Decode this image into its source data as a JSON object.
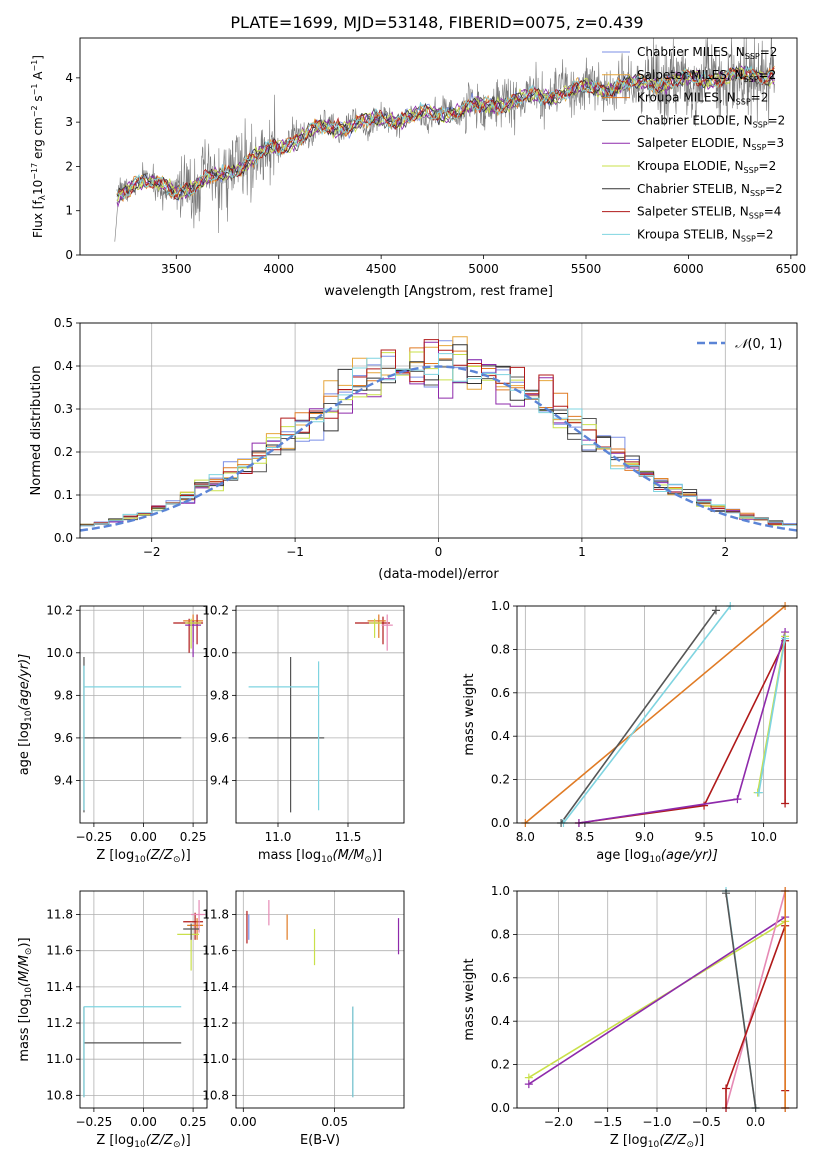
{
  "title": "PLATE=1699, MJD=53148, FIBERID=0075, z=0.439",
  "chart_data": [
    {
      "id": "spectrum",
      "type": "line",
      "xlabel": "wavelength [Angstrom, rest frame]",
      "ylabel": "Flux [f$_\\lambda$ 10$^{-17}$ erg cm$^{-2}$ s$^{-1}$ A$^{-1}$]",
      "ylabel_main": "Flux [f",
      "ylabel_tail": "10",
      "xlim": [
        3030,
        6530
      ],
      "ylim": [
        0,
        4.9
      ],
      "xticks": [
        3500,
        4000,
        4500,
        5000,
        5500,
        6000,
        6500
      ],
      "yticks": [
        0,
        1,
        2,
        3,
        4
      ],
      "data_range": [
        3200,
        6420
      ],
      "grid": false,
      "legend_position": "top-right",
      "continuum_knots": [
        [
          3200,
          1.25
        ],
        [
          3300,
          1.7
        ],
        [
          3500,
          1.45
        ],
        [
          3700,
          1.75
        ],
        [
          3950,
          2.35
        ],
        [
          4200,
          2.85
        ],
        [
          4500,
          3.05
        ],
        [
          4800,
          3.2
        ],
        [
          5100,
          3.45
        ],
        [
          5500,
          3.75
        ],
        [
          6000,
          3.95
        ],
        [
          6420,
          4.1
        ]
      ],
      "series": [
        {
          "name": "Chabrier MILES, N",
          "sub": "SSP",
          "suffix": "=2",
          "color": "#7b8fe6"
        },
        {
          "name": "Salpeter MILES, N",
          "sub": "SSP",
          "suffix": "=2",
          "color": "#e6a63d"
        },
        {
          "name": "Kroupa MILES, N",
          "sub": "SSP",
          "suffix": "=2",
          "color": "#e07b25"
        },
        {
          "name": "Chabrier ELODIE, N",
          "sub": "SSP",
          "suffix": "=2",
          "color": "#555555"
        },
        {
          "name": "Salpeter ELODIE, N",
          "sub": "SSP",
          "suffix": "=3",
          "color": "#8e2aab"
        },
        {
          "name": "Kroupa ELODIE, N",
          "sub": "SSP",
          "suffix": "=2",
          "color": "#c9e04a"
        },
        {
          "name": "Chabrier STELIB, N",
          "sub": "SSP",
          "suffix": "=2",
          "color": "#333333"
        },
        {
          "name": "Salpeter STELIB, N",
          "sub": "SSP",
          "suffix": "=4",
          "color": "#b01a1a"
        },
        {
          "name": "Kroupa STELIB, N",
          "sub": "SSP",
          "suffix": "=2",
          "color": "#7fd4e0"
        }
      ]
    },
    {
      "id": "residuals",
      "type": "line",
      "xlabel": "(data-model)/error",
      "ylabel": "Normed distribution",
      "xlim": [
        -2.5,
        2.5
      ],
      "ylim": [
        0,
        0.5
      ],
      "xticks": [
        -2,
        -1,
        0,
        1,
        2
      ],
      "xticklabels": [
        "−2",
        "−1",
        "0",
        "1",
        "2"
      ],
      "yticks": [
        0.0,
        0.1,
        0.2,
        0.3,
        0.4,
        0.5
      ],
      "yticklabels": [
        "0.0",
        "0.1",
        "0.2",
        "0.3",
        "0.4",
        "0.5"
      ],
      "grid": true,
      "legend_position": "top-right",
      "legend_label": "(0, 1)",
      "legend_prefix": "𝒩",
      "gaussian_color": "#5b84d6",
      "bin_width": 0.1
    },
    {
      "id": "age_vs_Z",
      "type": "scatter",
      "xlabel_prefix": "Z [log",
      "xlabel_sub": "10",
      "xlabel_mid": "(Z/Z",
      "xlabel_end": ")]",
      "ylabel_prefix": "age  [log",
      "ylabel_sub": "10",
      "ylabel_end": "(age/yr)]",
      "xlim": [
        -0.32,
        0.32
      ],
      "ylim": [
        9.2,
        10.22
      ],
      "xticks": [
        -0.25,
        0.0,
        0.25
      ],
      "xticklabels": [
        "−0.25",
        "0.00",
        "0.25"
      ],
      "yticks": [
        9.4,
        9.6,
        9.8,
        10.0,
        10.2
      ],
      "yticklabels": [
        "9.4",
        "9.6",
        "9.8",
        "10.0",
        "10.2"
      ],
      "grid": true,
      "points": [
        {
          "x": -0.3,
          "y": 9.6,
          "xerr": [
            0.0,
            0.49
          ],
          "yerr": [
            0.35,
            0.38
          ],
          "color": "#555555"
        },
        {
          "x": -0.3,
          "y": 9.84,
          "xerr": [
            0.0,
            0.49
          ],
          "yerr": [
            0.58,
            0.1
          ],
          "color": "#7fd4e0"
        },
        {
          "x": 0.23,
          "y": 10.14,
          "xerr": [
            0.08,
            0.06
          ],
          "yerr": [
            0.14,
            0.02
          ],
          "color": "#b01a1a"
        },
        {
          "x": 0.25,
          "y": 10.15,
          "xerr": [
            0.05,
            0.05
          ],
          "yerr": [
            0.1,
            0.03
          ],
          "color": "#e07b25"
        },
        {
          "x": 0.27,
          "y": 10.14,
          "xerr": [
            0.05,
            0.03
          ],
          "yerr": [
            0.1,
            0.04
          ],
          "color": "#b01a1a"
        },
        {
          "x": 0.25,
          "y": 10.13,
          "xerr": [
            0.04,
            0.04
          ],
          "yerr": [
            0.15,
            0.02
          ],
          "color": "#8e2aab"
        },
        {
          "x": 0.24,
          "y": 10.14,
          "xerr": [
            0.03,
            0.05
          ],
          "yerr": [
            0.12,
            0.02
          ],
          "color": "#c9e04a"
        }
      ]
    },
    {
      "id": "age_vs_mass",
      "type": "scatter",
      "xlabel_prefix": "mass [log",
      "xlabel_sub": "10",
      "xlabel_mid": "(M/M",
      "xlabel_end": ")]",
      "xlim": [
        10.7,
        11.9
      ],
      "ylim": [
        9.2,
        10.22
      ],
      "xticks": [
        11.0,
        11.5
      ],
      "xticklabels": [
        "11.0",
        "11.5"
      ],
      "yticks": [
        9.4,
        9.6,
        9.8,
        10.0,
        10.2
      ],
      "yticklabels": [
        "9.4",
        "9.6",
        "9.8",
        "10.0",
        "10.2"
      ],
      "grid": true,
      "points": [
        {
          "x": 11.09,
          "y": 9.6,
          "xerr": [
            0.3,
            0.24
          ],
          "yerr": [
            0.35,
            0.38
          ],
          "color": "#555555"
        },
        {
          "x": 11.29,
          "y": 9.84,
          "xerr": [
            0.5,
            0.0
          ],
          "yerr": [
            0.58,
            0.12
          ],
          "color": "#7fd4e0"
        },
        {
          "x": 11.75,
          "y": 10.14,
          "xerr": [
            0.2,
            0.05
          ],
          "yerr": [
            0.1,
            0.03
          ],
          "color": "#b01a1a"
        },
        {
          "x": 11.72,
          "y": 10.15,
          "xerr": [
            0.08,
            0.05
          ],
          "yerr": [
            0.08,
            0.03
          ],
          "color": "#e07b25"
        },
        {
          "x": 11.78,
          "y": 10.13,
          "xerr": [
            0.04,
            0.04
          ],
          "yerr": [
            0.12,
            0.05
          ],
          "color": "#e68ab5"
        },
        {
          "x": 11.69,
          "y": 10.14,
          "xerr": [
            0.04,
            0.05
          ],
          "yerr": [
            0.07,
            0.02
          ],
          "color": "#c9e04a"
        }
      ]
    },
    {
      "id": "weight_vs_age",
      "type": "line",
      "xlabel_prefix": "age  [log",
      "xlabel_sub": "10",
      "xlabel_end": "(age/yr)]",
      "ylabel": "mass weight",
      "xlim": [
        7.93,
        10.28
      ],
      "ylim": [
        0,
        1.0
      ],
      "xticks": [
        8.0,
        8.5,
        9.0,
        9.5,
        10.0
      ],
      "xticklabels": [
        "8.0",
        "8.5",
        "9.0",
        "9.5",
        "10.0"
      ],
      "yticks": [
        0.0,
        0.2,
        0.4,
        0.6,
        0.8,
        1.0
      ],
      "yticklabels": [
        "0.0",
        "0.2",
        "0.4",
        "0.6",
        "0.8",
        "1.0"
      ],
      "grid": true,
      "series": [
        {
          "color": "#e07b25",
          "x": [
            8.0,
            10.18
          ],
          "y": [
            0.0,
            1.0
          ]
        },
        {
          "color": "#555555",
          "x": [
            8.3,
            9.6
          ],
          "y": [
            0.0,
            0.98
          ]
        },
        {
          "color": "#7fd4e0",
          "x": [
            8.32,
            9.72
          ],
          "y": [
            0.0,
            1.0
          ]
        },
        {
          "color": "#b01a1a",
          "x": [
            8.45,
            9.5,
            10.18,
            10.18
          ],
          "y": [
            0.0,
            0.08,
            0.84,
            0.09
          ]
        },
        {
          "color": "#8e2aab",
          "x": [
            8.45,
            9.78,
            10.18
          ],
          "y": [
            0.0,
            0.11,
            0.88
          ]
        },
        {
          "color": "#c9e04a",
          "x": [
            9.95,
            10.18
          ],
          "y": [
            0.14,
            0.86
          ]
        },
        {
          "color": "#7fd4e0",
          "x": [
            9.96,
            10.18
          ],
          "y": [
            0.14,
            0.85
          ]
        }
      ]
    },
    {
      "id": "mass_vs_Z",
      "type": "scatter",
      "xlabel_prefix": "Z [log",
      "xlabel_sub": "10",
      "xlabel_mid": "(Z/Z",
      "xlabel_end": ")]",
      "ylabel_prefix": "mass [log",
      "ylabel_sub": "10",
      "ylabel_mid": "(M/M",
      "ylabel_end": ")]",
      "xlim": [
        -0.32,
        0.32
      ],
      "ylim": [
        10.73,
        11.93
      ],
      "xticks": [
        -0.25,
        0.0,
        0.25
      ],
      "xticklabels": [
        "−0.25",
        "0.00",
        "0.25"
      ],
      "yticks": [
        10.8,
        11.0,
        11.2,
        11.4,
        11.6,
        11.8
      ],
      "yticklabels": [
        "10.8",
        "11.0",
        "11.2",
        "11.4",
        "11.6",
        "11.8"
      ],
      "grid": true,
      "points": [
        {
          "x": -0.3,
          "y": 11.09,
          "xerr": [
            0.0,
            0.49
          ],
          "yerr": [
            0.3,
            0.2
          ],
          "color": "#555555"
        },
        {
          "x": -0.3,
          "y": 11.29,
          "xerr": [
            0.0,
            0.49
          ],
          "yerr": [
            0.5,
            0.0
          ],
          "color": "#7fd4e0"
        },
        {
          "x": 0.26,
          "y": 11.76,
          "xerr": [
            0.06,
            0.04
          ],
          "yerr": [
            0.1,
            0.05
          ],
          "color": "#b01a1a"
        },
        {
          "x": 0.27,
          "y": 11.74,
          "xerr": [
            0.05,
            0.03
          ],
          "yerr": [
            0.08,
            0.04
          ],
          "color": "#e07b25"
        },
        {
          "x": 0.28,
          "y": 11.8,
          "xerr": [
            0.04,
            0.03
          ],
          "yerr": [
            0.1,
            0.08
          ],
          "color": "#e68ab5"
        },
        {
          "x": 0.24,
          "y": 11.69,
          "xerr": [
            0.07,
            0.04
          ],
          "yerr": [
            0.2,
            0.04
          ],
          "color": "#c9e04a"
        },
        {
          "x": 0.24,
          "y": 11.72,
          "xerr": [
            0.04,
            0.04
          ],
          "yerr": [
            0.06,
            0.03
          ],
          "color": "#555555"
        }
      ]
    },
    {
      "id": "mass_vs_EBV",
      "type": "scatter",
      "xlabel": "E(B-V)",
      "xlim": [
        -0.004,
        0.088
      ],
      "ylim": [
        10.73,
        11.93
      ],
      "xticks": [
        0.0,
        0.05
      ],
      "xticklabels": [
        "0.00",
        "0.05"
      ],
      "yticks": [
        10.8,
        11.0,
        11.2,
        11.4,
        11.6,
        11.8
      ],
      "yticklabels": [
        "10.8",
        "11.0",
        "11.2",
        "11.4",
        "11.6",
        "11.8"
      ],
      "grid": true,
      "points": [
        {
          "x": 0.002,
          "y": 11.72,
          "xerr": [
            0,
            0
          ],
          "yerr": [
            0.08,
            0.1
          ],
          "color": "#b01a1a"
        },
        {
          "x": 0.003,
          "y": 11.72,
          "xerr": [
            0,
            0
          ],
          "yerr": [
            0.06,
            0.08
          ],
          "color": "#7b8fe6"
        },
        {
          "x": 0.014,
          "y": 11.78,
          "xerr": [
            0,
            0
          ],
          "yerr": [
            0.04,
            0.1
          ],
          "color": "#e68ab5"
        },
        {
          "x": 0.024,
          "y": 11.72,
          "xerr": [
            0,
            0
          ],
          "yerr": [
            0.06,
            0.08
          ],
          "color": "#e07b25"
        },
        {
          "x": 0.039,
          "y": 11.62,
          "xerr": [
            0,
            0
          ],
          "yerr": [
            0.1,
            0.1
          ],
          "color": "#c9e04a"
        },
        {
          "x": 0.06,
          "y": 11.09,
          "xerr": [
            0,
            0
          ],
          "yerr": [
            0.3,
            0.2
          ],
          "color": "#555555"
        },
        {
          "x": 0.06,
          "y": 11.09,
          "xerr": [
            0,
            0
          ],
          "yerr": [
            0.3,
            0.2
          ],
          "color": "#7fd4e0"
        },
        {
          "x": 0.085,
          "y": 11.68,
          "xerr": [
            0,
            0
          ],
          "yerr": [
            0.1,
            0.1
          ],
          "color": "#8e2aab"
        }
      ]
    },
    {
      "id": "weight_vs_Z",
      "type": "line",
      "xlabel_prefix": "Z [log",
      "xlabel_sub": "10",
      "xlabel_mid": "(Z/Z",
      "xlabel_end": ")]",
      "ylabel": "mass weight",
      "xlim": [
        -2.42,
        0.42
      ],
      "ylim": [
        0,
        1.0
      ],
      "xticks": [
        -2.0,
        -1.5,
        -1.0,
        -0.5,
        0.0
      ],
      "xticklabels": [
        "−2.0",
        "−1.5",
        "−1.0",
        "−0.5",
        "0.0"
      ],
      "yticks": [
        0.0,
        0.2,
        0.4,
        0.6,
        0.8,
        1.0
      ],
      "yticklabels": [
        "0.0",
        "0.2",
        "0.4",
        "0.6",
        "0.8",
        "1.0"
      ],
      "grid": true,
      "series": [
        {
          "color": "#c9e04a",
          "x": [
            -2.3,
            0.3
          ],
          "y": [
            0.14,
            0.86
          ]
        },
        {
          "color": "#8e2aab",
          "x": [
            -2.3,
            0.3
          ],
          "y": [
            0.11,
            0.88
          ]
        },
        {
          "color": "#7fd4e0",
          "x": [
            -0.3,
            0.0
          ],
          "y": [
            1.0,
            0.0
          ]
        },
        {
          "color": "#555555",
          "x": [
            -0.3,
            0.0
          ],
          "y": [
            0.99,
            0.0
          ]
        },
        {
          "color": "#e68ab5",
          "x": [
            -0.3,
            0.3
          ],
          "y": [
            0.0,
            1.0
          ]
        },
        {
          "color": "#b01a1a",
          "x": [
            -0.3,
            -0.3,
            0.3,
            0.3,
            0.3
          ],
          "y": [
            0.0,
            0.09,
            0.84,
            0.08,
            0.0
          ]
        },
        {
          "color": "#e07b25",
          "x": [
            0.3,
            0.3
          ],
          "y": [
            0.0,
            1.0
          ]
        }
      ]
    }
  ]
}
